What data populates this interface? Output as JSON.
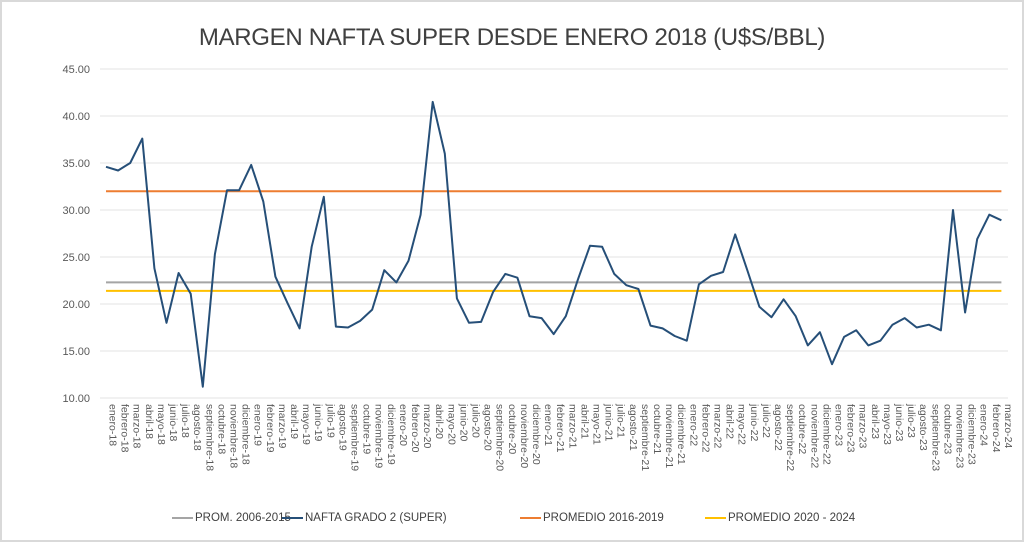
{
  "chart_data": {
    "type": "line",
    "title": "MARGEN NAFTA SUPER DESDE ENERO 2018 (U$S/BBL)",
    "xlabel": "",
    "ylabel": "",
    "ylim": [
      10,
      45
    ],
    "yticks": [
      "10.00",
      "15.00",
      "20.00",
      "25.00",
      "30.00",
      "35.00",
      "40.00",
      "45.00"
    ],
    "ytick_values": [
      10,
      15,
      20,
      25,
      30,
      35,
      40,
      45
    ],
    "grid": true,
    "legend_position": "bottom",
    "categories": [
      "enero-18",
      "febrero-18",
      "marzo-18",
      "abril-18",
      "mayo-18",
      "junio-18",
      "julio-18",
      "agosto-18",
      "septiembre-18",
      "octubre-18",
      "noviembre-18",
      "diciembre-18",
      "enero-19",
      "febrero-19",
      "marzo-19",
      "abril-19",
      "mayo-19",
      "junio-19",
      "julio-19",
      "agosto-19",
      "septiembre-19",
      "octubre-19",
      "noviembre-19",
      "diciembre-19",
      "enero-20",
      "febrero-20",
      "marzo-20",
      "abril-20",
      "mayo-20",
      "junio-20",
      "julio-20",
      "agosto-20",
      "septiembre-20",
      "octubre-20",
      "noviembre-20",
      "diciembre-20",
      "enero-21",
      "febrero-21",
      "marzo-21",
      "abril-21",
      "mayo-21",
      "junio-21",
      "julio-21",
      "agosto-21",
      "septiembre-21",
      "octubre-21",
      "noviembre-21",
      "diciembre-21",
      "enero-22",
      "febrero-22",
      "marzo-22",
      "abril-22",
      "mayo-22",
      "junio-22",
      "julio-22",
      "agosto-22",
      "septiembre-22",
      "octubre-22",
      "noviembre-22",
      "diciembre-22",
      "enero-23",
      "febrero-23",
      "marzo-23",
      "abril-23",
      "mayo-23",
      "junio-23",
      "julio-23",
      "agosto-23",
      "septiembre-23",
      "octubre-23",
      "noviembre-23",
      "diciembre-23",
      "enero-24",
      "febrero-24",
      "marzo-24"
    ],
    "series": [
      {
        "name": "PROM. 2006-2015",
        "color": "#a5a5a5",
        "kind": "constant",
        "value": 22.3
      },
      {
        "name": "NAFTA GRADO 2 (SUPER)",
        "color": "#264f78",
        "kind": "monthly",
        "values": [
          34.6,
          34.2,
          35.0,
          37.6,
          23.8,
          18.0,
          23.3,
          21.1,
          11.2,
          25.3,
          32.1,
          32.1,
          34.8,
          30.9,
          22.9,
          20.1,
          17.4,
          26.1,
          31.4,
          17.6,
          17.5,
          18.2,
          19.4,
          23.6,
          22.3,
          24.6,
          29.5,
          41.5,
          36.0,
          20.6,
          18.0,
          18.1,
          21.3,
          23.2,
          22.8,
          18.7,
          18.5,
          16.8,
          18.7,
          22.6,
          26.2,
          26.1,
          23.2,
          22.0,
          21.6,
          17.7,
          17.4,
          16.6,
          16.1,
          22.1,
          23.0,
          23.4,
          27.4,
          23.6,
          19.7,
          18.6,
          20.5,
          18.7,
          15.6,
          17.0,
          13.6,
          16.5,
          17.2,
          15.6,
          16.1,
          17.8,
          18.5,
          17.5,
          17.8,
          17.2,
          30.0,
          19.1,
          26.9,
          29.5,
          28.9
        ]
      },
      {
        "name": "PROMEDIO 2016-2019",
        "color": "#ed7d31",
        "kind": "constant",
        "value": 32.0
      },
      {
        "name": "PROMEDIO 2020 - 2024",
        "color": "#ffc000",
        "kind": "constant",
        "value": 21.4
      }
    ]
  }
}
